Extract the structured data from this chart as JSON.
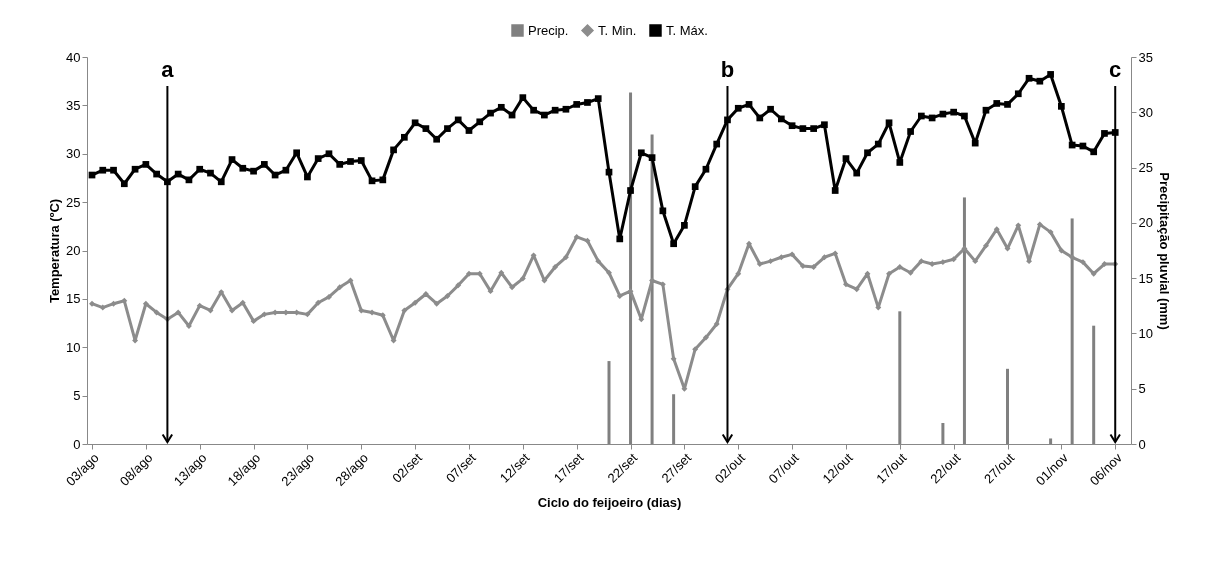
{
  "chart_data": {
    "type": "line",
    "xlabel": "Ciclo do feijoeiro (dias)",
    "ylabel": "Temperatura (ºC)",
    "y2label": "Precipitação pluvial (mm)",
    "x": [
      "--08-03",
      "--08-04",
      "--08-05",
      "--08-06",
      "--08-07",
      "--08-08",
      "--08-09",
      "--08-10",
      "--08-11",
      "--08-12",
      "--08-13",
      "--08-14",
      "--08-15",
      "--08-16",
      "--08-17",
      "--08-18",
      "--08-19",
      "--08-20",
      "--08-21",
      "--08-22",
      "--08-23",
      "--08-24",
      "--08-25",
      "--08-26",
      "--08-27",
      "--08-28",
      "--08-29",
      "--08-30",
      "--08-31",
      "--09-01",
      "--09-02",
      "--09-03",
      "--09-04",
      "--09-05",
      "--09-06",
      "--09-07",
      "--09-08",
      "--09-09",
      "--09-10",
      "--09-11",
      "--09-12",
      "--09-13",
      "--09-14",
      "--09-15",
      "--09-16",
      "--09-17",
      "--09-18",
      "--09-19",
      "--09-20",
      "--09-21",
      "--09-22",
      "--09-23",
      "--09-24",
      "--09-25",
      "--09-26",
      "--09-27",
      "--09-28",
      "--09-29",
      "--09-30",
      "--10-01",
      "--10-02",
      "--10-03",
      "--10-04",
      "--10-05",
      "--10-06",
      "--10-07",
      "--10-08",
      "--10-09",
      "--10-10",
      "--10-11",
      "--10-12",
      "--10-13",
      "--10-14",
      "--10-15",
      "--10-16",
      "--10-17",
      "--10-18",
      "--10-19",
      "--10-20",
      "--10-21",
      "--10-22",
      "--10-23",
      "--10-24",
      "--10-25",
      "--10-26",
      "--10-27",
      "--10-28",
      "--10-29",
      "--10-30",
      "--10-31",
      "--11-01",
      "--11-02",
      "--11-03",
      "--11-04",
      "--11-05",
      "--11-06"
    ],
    "series": [
      {
        "name": "Precip.",
        "type": "bar",
        "axis": "y2",
        "color": "#808080",
        "values": [
          null,
          null,
          null,
          null,
          null,
          null,
          null,
          null,
          null,
          null,
          null,
          null,
          null,
          null,
          null,
          null,
          null,
          null,
          null,
          null,
          null,
          null,
          null,
          null,
          null,
          null,
          null,
          null,
          null,
          null,
          null,
          null,
          null,
          null,
          null,
          null,
          null,
          null,
          null,
          null,
          null,
          null,
          null,
          null,
          null,
          null,
          null,
          null,
          7.5,
          null,
          31.8,
          null,
          28.0,
          null,
          4.5,
          null,
          null,
          null,
          null,
          null,
          null,
          null,
          null,
          null,
          null,
          null,
          null,
          null,
          null,
          null,
          null,
          null,
          null,
          null,
          null,
          12.0,
          null,
          null,
          null,
          1.9,
          null,
          22.3,
          null,
          null,
          null,
          6.8,
          null,
          null,
          null,
          0.5,
          null,
          20.4,
          null,
          10.7,
          null,
          null
        ]
      },
      {
        "name": "T. Min.",
        "marker": "diamond",
        "color": "#8c8c8c",
        "values": [
          14.5,
          14.1,
          14.5,
          14.8,
          10.7,
          14.5,
          13.6,
          12.9,
          13.6,
          12.2,
          14.3,
          13.8,
          15.7,
          13.8,
          14.6,
          12.7,
          13.4,
          13.6,
          13.6,
          13.6,
          13.4,
          14.6,
          15.2,
          16.2,
          16.9,
          13.8,
          13.6,
          13.3,
          10.7,
          13.8,
          14.6,
          15.5,
          14.5,
          15.3,
          16.4,
          17.6,
          17.6,
          15.8,
          17.7,
          16.2,
          17.1,
          19.5,
          16.9,
          18.3,
          19.3,
          21.4,
          21.0,
          18.9,
          17.7,
          15.3,
          15.8,
          12.9,
          16.9,
          16.5,
          8.8,
          5.7,
          9.8,
          11.0,
          12.4,
          16.0,
          17.6,
          20.7,
          18.6,
          18.9,
          19.3,
          19.6,
          18.4,
          18.3,
          19.3,
          19.7,
          16.5,
          16.0,
          17.6,
          14.1,
          17.6,
          18.3,
          17.7,
          18.9,
          18.6,
          18.8,
          19.1,
          20.2,
          18.9,
          20.5,
          22.2,
          20.2,
          22.6,
          18.9,
          22.7,
          21.9,
          20.0,
          19.3,
          18.8,
          17.6,
          18.6,
          18.6
        ]
      },
      {
        "name": "T. Máx.",
        "marker": "square",
        "color": "#000000",
        "values": [
          27.8,
          28.3,
          28.3,
          26.9,
          28.4,
          28.9,
          27.9,
          27.1,
          27.9,
          27.3,
          28.4,
          28.0,
          27.1,
          29.4,
          28.5,
          28.2,
          28.9,
          27.8,
          28.3,
          30.1,
          27.6,
          29.5,
          30.0,
          28.9,
          29.2,
          29.3,
          27.2,
          27.3,
          30.4,
          31.7,
          33.2,
          32.6,
          31.5,
          32.6,
          33.5,
          32.4,
          33.3,
          34.2,
          34.8,
          34.0,
          35.8,
          34.5,
          34.0,
          34.5,
          34.6,
          35.1,
          35.3,
          35.7,
          28.1,
          21.2,
          26.2,
          30.1,
          29.6,
          24.1,
          20.7,
          22.6,
          26.6,
          28.4,
          31.0,
          33.5,
          34.7,
          35.1,
          33.7,
          34.6,
          33.6,
          32.9,
          32.6,
          32.6,
          33.0,
          26.2,
          29.5,
          28.0,
          30.1,
          31.0,
          33.2,
          29.1,
          32.3,
          33.9,
          33.7,
          34.1,
          34.3,
          33.9,
          31.1,
          34.5,
          35.2,
          35.1,
          36.2,
          37.8,
          37.5,
          38.2,
          34.9,
          30.9,
          30.8,
          30.2,
          32.1,
          32.2
        ]
      }
    ],
    "xlim": [
      "--08-03",
      "--11-07"
    ],
    "xticks": [
      {
        "value": "--08-03",
        "label": "03/ago"
      },
      {
        "value": "--08-08",
        "label": "08/ago"
      },
      {
        "value": "--08-13",
        "label": "13/ago"
      },
      {
        "value": "--08-18",
        "label": "18/ago"
      },
      {
        "value": "--08-23",
        "label": "23/ago"
      },
      {
        "value": "--08-28",
        "label": "28/ago"
      },
      {
        "value": "--09-02",
        "label": "02/set"
      },
      {
        "value": "--09-07",
        "label": "07/set"
      },
      {
        "value": "--09-12",
        "label": "12/set"
      },
      {
        "value": "--09-17",
        "label": "17/set"
      },
      {
        "value": "--09-22",
        "label": "22/set"
      },
      {
        "value": "--09-27",
        "label": "27/set"
      },
      {
        "value": "--10-02",
        "label": "02/out"
      },
      {
        "value": "--10-07",
        "label": "07/out"
      },
      {
        "value": "--10-12",
        "label": "12/out"
      },
      {
        "value": "--10-17",
        "label": "17/out"
      },
      {
        "value": "--10-22",
        "label": "22/out"
      },
      {
        "value": "--10-27",
        "label": "27/out"
      },
      {
        "value": "--11-01",
        "label": "01/nov"
      },
      {
        "value": "--11-06",
        "label": "06/nov"
      }
    ],
    "ylim": [
      0,
      40
    ],
    "yticks": [
      0,
      5,
      10,
      15,
      20,
      25,
      30,
      35,
      40
    ],
    "y2lim": [
      0,
      35
    ],
    "y2ticks": [
      0,
      5,
      10,
      15,
      20,
      25,
      30,
      35
    ],
    "ref_lines": [
      {
        "axis": "x",
        "value": "--08-10",
        "label": "a",
        "color": "#000000"
      },
      {
        "axis": "x",
        "value": "--10-01",
        "label": "b",
        "color": "#000000"
      },
      {
        "axis": "x",
        "value": "--11-06",
        "label": "c",
        "color": "#000000"
      }
    ],
    "legend": "top",
    "grid": false,
    "line_style": "solid"
  }
}
